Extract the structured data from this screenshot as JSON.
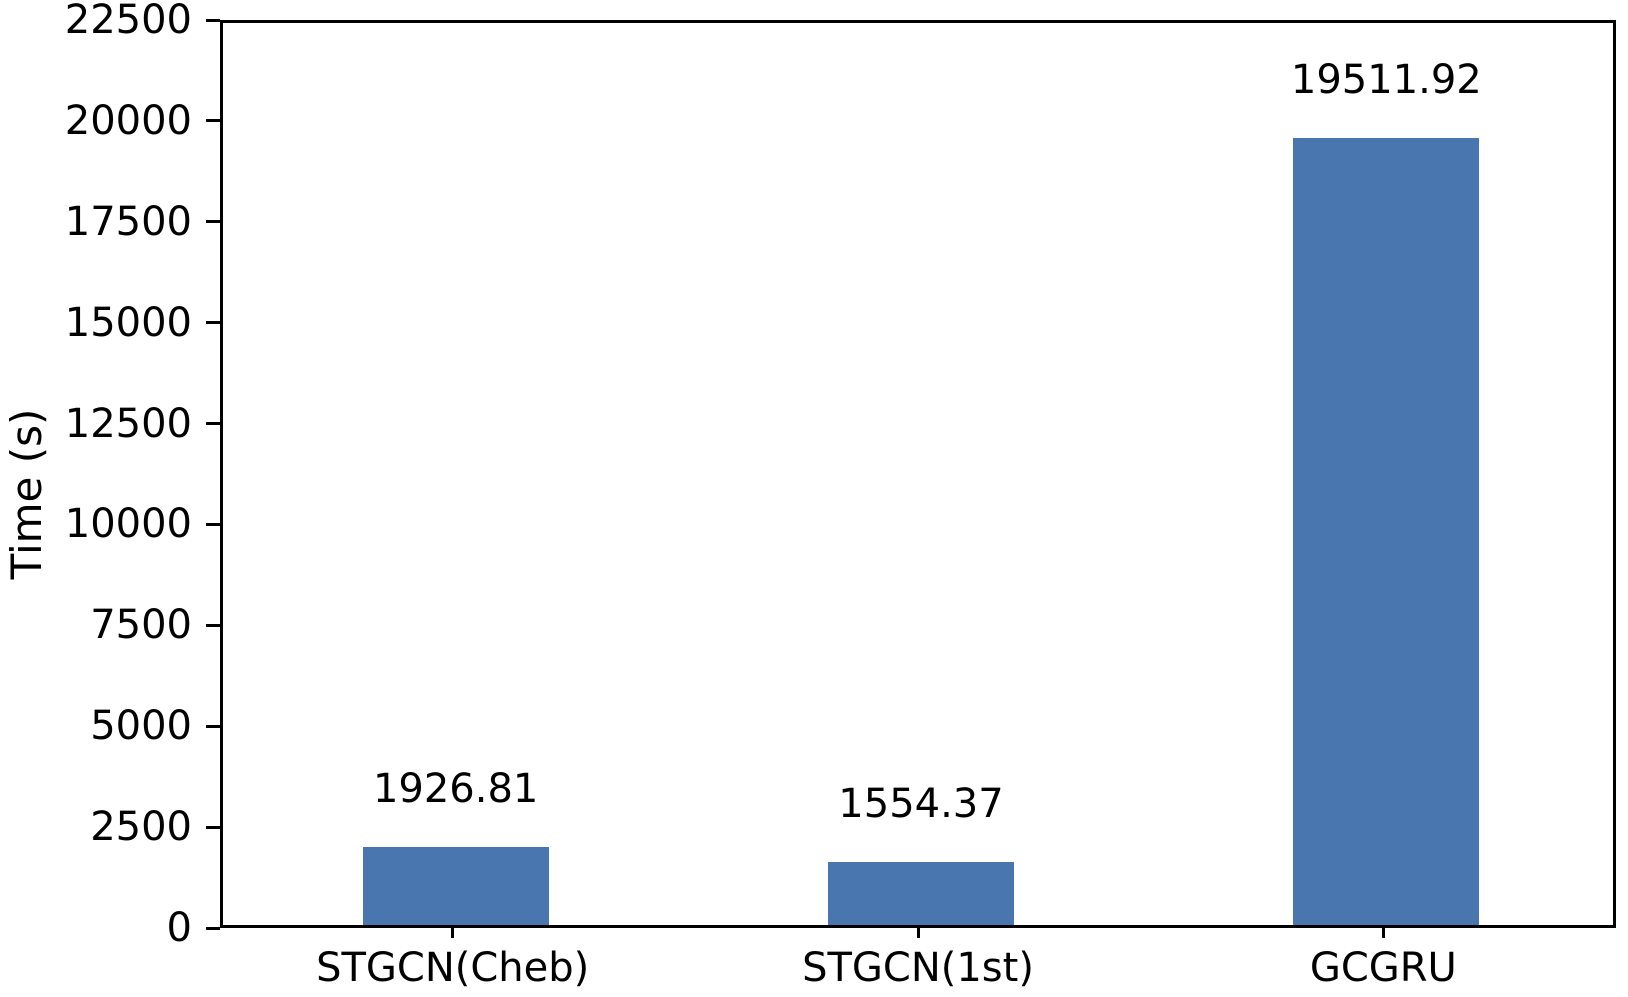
{
  "chart_data": {
    "type": "bar",
    "title": "",
    "xlabel": "",
    "ylabel": "Time (s)",
    "categories": [
      "STGCN(Cheb)",
      "STGCN(1st)",
      "GCGRU"
    ],
    "values": [
      1926.81,
      1554.37,
      19511.92
    ],
    "bar_labels": [
      "1926.81",
      "1554.37",
      "19511.92"
    ],
    "ylim": [
      0,
      22500
    ],
    "yticks": [
      0,
      2500,
      5000,
      7500,
      10000,
      12500,
      15000,
      17500,
      20000,
      22500
    ],
    "ytick_labels": [
      "0",
      "2500",
      "5000",
      "7500",
      "10000",
      "12500",
      "15000",
      "17500",
      "20000",
      "22500"
    ],
    "grid": false,
    "legend_position": "none",
    "bar_color": "#4a76b0",
    "axis_color": "#000000",
    "text_color": "#000000",
    "background_color": "#ffffff"
  }
}
